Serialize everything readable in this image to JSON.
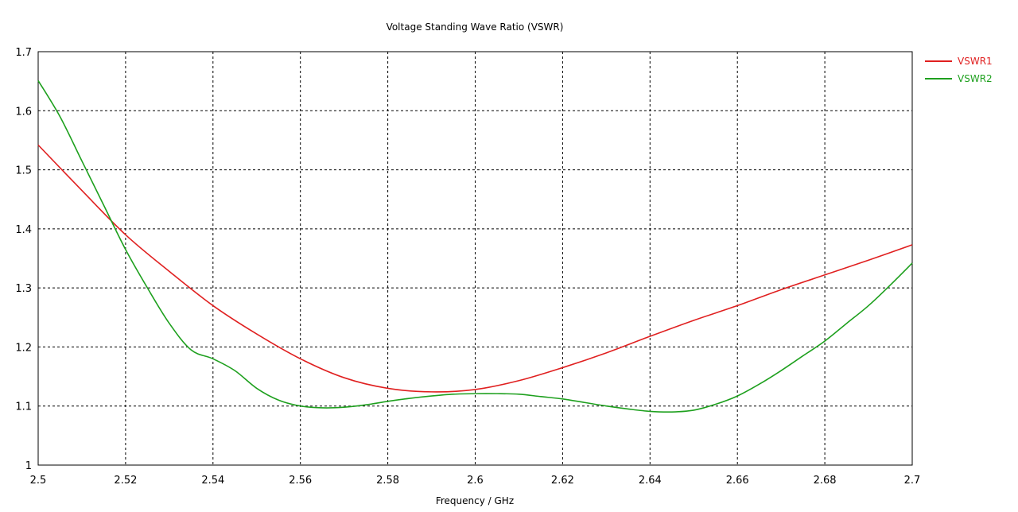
{
  "chart_data": {
    "type": "line",
    "title": "Voltage Standing Wave Ratio (VSWR)",
    "xlabel": "Frequency / GHz",
    "ylabel": "",
    "xlim": [
      2.5,
      2.7
    ],
    "ylim": [
      1.0,
      1.7
    ],
    "xticks": [
      "2.5",
      "2.52",
      "2.54",
      "2.56",
      "2.58",
      "2.6",
      "2.62",
      "2.64",
      "2.66",
      "2.68",
      "2.7"
    ],
    "yticks": [
      "1",
      "1.1",
      "1.2",
      "1.3",
      "1.4",
      "1.5",
      "1.6",
      "1.7"
    ],
    "grid": true,
    "legend_position": "top-right",
    "series": [
      {
        "name": "VSWR1",
        "color": "#e02020",
        "x": [
          2.5,
          2.51,
          2.52,
          2.53,
          2.54,
          2.55,
          2.56,
          2.57,
          2.58,
          2.59,
          2.6,
          2.61,
          2.62,
          2.63,
          2.64,
          2.65,
          2.66,
          2.67,
          2.68,
          2.69,
          2.7
        ],
        "y": [
          1.542,
          1.465,
          1.39,
          1.328,
          1.27,
          1.222,
          1.18,
          1.148,
          1.13,
          1.124,
          1.128,
          1.143,
          1.165,
          1.19,
          1.218,
          1.245,
          1.27,
          1.297,
          1.322,
          1.347,
          1.373
        ]
      },
      {
        "name": "VSWR2",
        "color": "#1ea01e",
        "x": [
          2.5,
          2.505,
          2.51,
          2.515,
          2.52,
          2.525,
          2.53,
          2.535,
          2.54,
          2.545,
          2.55,
          2.555,
          2.56,
          2.565,
          2.57,
          2.575,
          2.58,
          2.585,
          2.59,
          2.595,
          2.6,
          2.605,
          2.61,
          2.615,
          2.62,
          2.625,
          2.63,
          2.635,
          2.64,
          2.645,
          2.65,
          2.655,
          2.66,
          2.665,
          2.67,
          2.675,
          2.68,
          2.685,
          2.69,
          2.695,
          2.7
        ],
        "y": [
          1.651,
          1.59,
          1.515,
          1.44,
          1.365,
          1.3,
          1.24,
          1.195,
          1.18,
          1.16,
          1.13,
          1.11,
          1.1,
          1.097,
          1.098,
          1.102,
          1.108,
          1.113,
          1.117,
          1.12,
          1.121,
          1.121,
          1.12,
          1.116,
          1.112,
          1.106,
          1.1,
          1.095,
          1.091,
          1.09,
          1.093,
          1.103,
          1.117,
          1.137,
          1.16,
          1.185,
          1.21,
          1.24,
          1.27,
          1.305,
          1.342
        ]
      }
    ]
  }
}
